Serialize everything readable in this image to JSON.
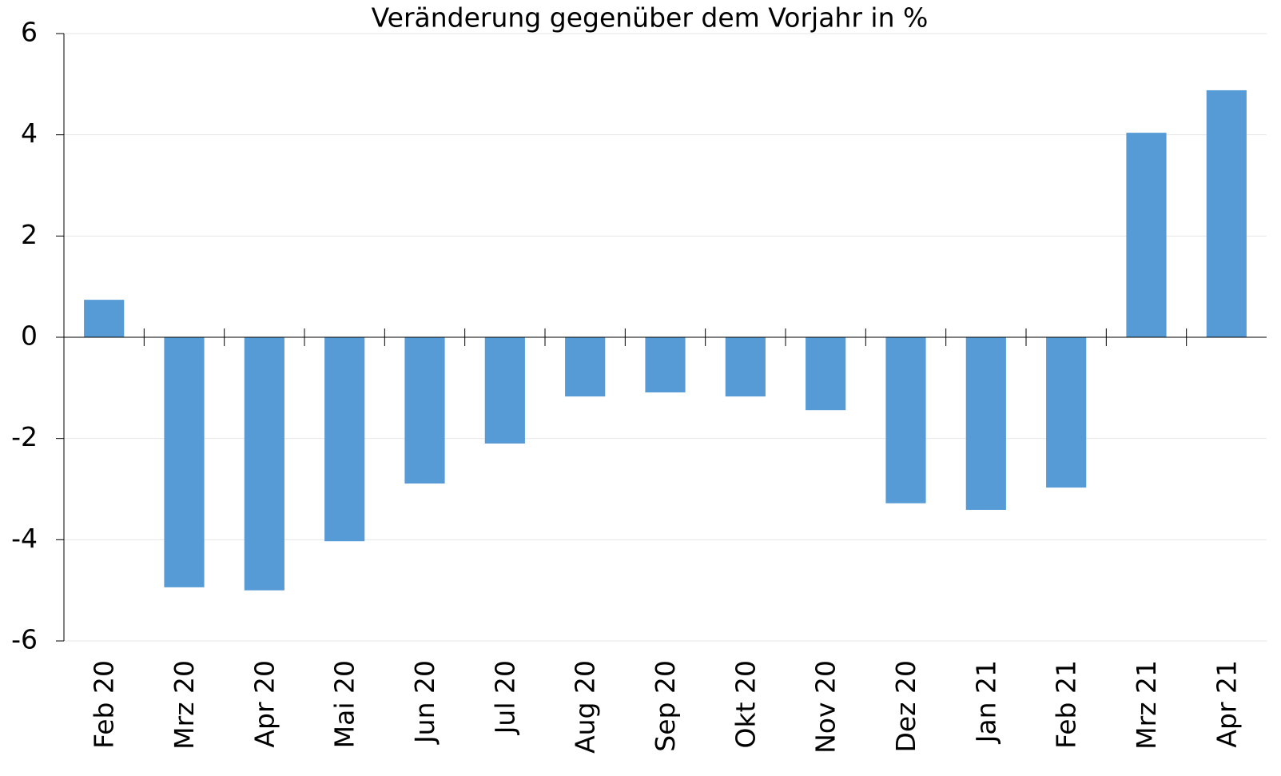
{
  "chart_data": {
    "type": "bar",
    "title": "Veränderung gegenüber dem Vorjahr in %",
    "categories": [
      "Feb 20",
      "Mrz 20",
      "Apr 20",
      "Mai 20",
      "Jun 20",
      "Jul 20",
      "Aug 20",
      "Sep 20",
      "Okt 20",
      "Nov 20",
      "Dez 20",
      "Jan 21",
      "Feb 21",
      "Mrz 21",
      "Apr 21"
    ],
    "values": [
      0.74,
      -4.94,
      -5.0,
      -4.03,
      -2.89,
      -2.1,
      -1.17,
      -1.09,
      -1.17,
      -1.44,
      -3.28,
      -3.41,
      -2.97,
      4.04,
      4.88
    ],
    "color": "#569bd6",
    "ylim": [
      -6,
      6
    ],
    "yticks": [
      -6,
      -4,
      -2,
      0,
      2,
      4,
      6
    ],
    "grid": true
  }
}
